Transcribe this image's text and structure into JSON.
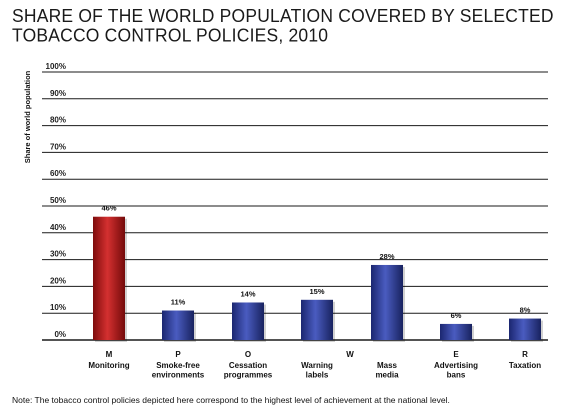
{
  "title_lines": [
    "SHARE OF THE WORLD POPULATION COVERED BY SELECTED",
    "TOBACCO CONTROL POLICIES, 2010"
  ],
  "note": "Note: The tobacco control policies depicted here correspond to the highest level of achievement at the national level.",
  "colors": {
    "highlight": "#b01818",
    "bar": "#2a3a8e",
    "grid": "#1a1a1a"
  },
  "chart_data": {
    "type": "bar",
    "title": "SHARE OF THE WORLD POPULATION COVERED BY SELECTED TOBACCO CONTROL POLICIES, 2010",
    "ylabel": "Share of world population",
    "xlabel": "",
    "ylim": [
      0,
      100
    ],
    "yticks": [
      "0%",
      "10%",
      "20%",
      "30%",
      "40%",
      "50%",
      "60%",
      "70%",
      "80%",
      "90%",
      "100%"
    ],
    "grid": true,
    "extra_label": "W",
    "categories": [
      {
        "letter": "M",
        "lines": [
          "Monitoring"
        ]
      },
      {
        "letter": "P",
        "lines": [
          "Smoke-free",
          "environments"
        ]
      },
      {
        "letter": "O",
        "lines": [
          "Cessation",
          "programmes"
        ]
      },
      {
        "letter": "",
        "lines": [
          "Warning",
          "labels"
        ]
      },
      {
        "letter": "",
        "lines": [
          "Mass",
          "media"
        ]
      },
      {
        "letter": "E",
        "lines": [
          "Advertising",
          "bans"
        ]
      },
      {
        "letter": "R",
        "lines": [
          "Taxation"
        ]
      }
    ],
    "values": [
      46,
      11,
      14,
      15,
      28,
      6,
      8
    ],
    "value_labels": [
      "46%",
      "11%",
      "14%",
      "15%",
      "28%",
      "6%",
      "8%"
    ],
    "highlight_index": 0
  }
}
